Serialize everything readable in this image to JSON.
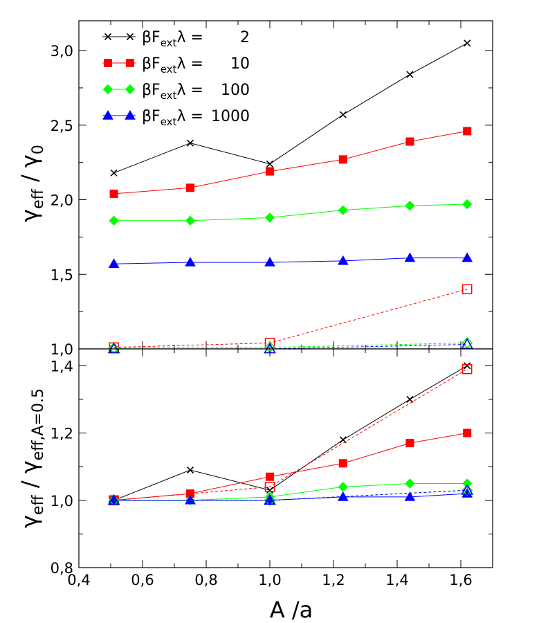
{
  "chart_data": [
    {
      "type": "line",
      "panel": "top",
      "ylabel_parts": {
        "main": "γ",
        "sub1": "eff",
        "sep": " / γ",
        "sub2": "0"
      },
      "xlim": [
        0.4,
        1.7
      ],
      "ylim": [
        1.0,
        3.2
      ],
      "yticks": [
        "1,0",
        "1,5",
        "2,0",
        "2,5",
        "3,0"
      ],
      "ytick_values": [
        1.0,
        1.5,
        2.0,
        2.5,
        3.0
      ],
      "legend": {
        "position": "top-left",
        "entries": [
          {
            "prefix": "βF",
            "sub": "ext",
            "suffix": "λ =",
            "value": "2",
            "color": "#000000",
            "marker": "x"
          },
          {
            "prefix": "βF",
            "sub": "ext",
            "suffix": "λ =",
            "value": "10",
            "color": "#ff0000",
            "marker": "square"
          },
          {
            "prefix": "βF",
            "sub": "ext",
            "suffix": "λ =",
            "value": "100",
            "color": "#00ff00",
            "marker": "diamond"
          },
          {
            "prefix": "βF",
            "sub": "ext",
            "suffix": "λ =",
            "value": "1000",
            "color": "#0000ff",
            "marker": "triangle"
          }
        ]
      },
      "series": [
        {
          "name": "2",
          "color": "#000000",
          "marker": "x",
          "dashed": false,
          "x": [
            0.51,
            0.75,
            1.0,
            1.23,
            1.44,
            1.62
          ],
          "y": [
            2.18,
            2.38,
            2.24,
            2.57,
            2.84,
            3.05
          ]
        },
        {
          "name": "10",
          "color": "#ff0000",
          "marker": "square",
          "dashed": false,
          "x": [
            0.51,
            0.75,
            1.0,
            1.23,
            1.44,
            1.62
          ],
          "y": [
            2.04,
            2.08,
            2.19,
            2.27,
            2.39,
            2.46
          ]
        },
        {
          "name": "100",
          "color": "#00ff00",
          "marker": "diamond",
          "dashed": false,
          "x": [
            0.51,
            0.75,
            1.0,
            1.23,
            1.44,
            1.62
          ],
          "y": [
            1.86,
            1.86,
            1.88,
            1.93,
            1.96,
            1.97
          ]
        },
        {
          "name": "1000",
          "color": "#0000ff",
          "marker": "triangle",
          "dashed": false,
          "x": [
            0.51,
            0.75,
            1.0,
            1.23,
            1.44,
            1.62
          ],
          "y": [
            1.57,
            1.58,
            1.58,
            1.59,
            1.61,
            1.61
          ]
        },
        {
          "name": "10 (open)",
          "color": "#ff0000",
          "marker": "open-square",
          "dashed": true,
          "x": [
            0.51,
            1.0,
            1.62
          ],
          "y": [
            1.01,
            1.04,
            1.4
          ]
        },
        {
          "name": "100 (open)",
          "color": "#00ff00",
          "marker": "open-diamond",
          "dashed": true,
          "x": [
            0.51,
            1.0,
            1.62
          ],
          "y": [
            1.005,
            1.01,
            1.04
          ]
        },
        {
          "name": "1000 (open)",
          "color": "#0000ff",
          "marker": "open-triangle",
          "dashed": true,
          "x": [
            0.51,
            1.0,
            1.62
          ],
          "y": [
            1.0,
            1.0,
            1.03
          ]
        }
      ]
    },
    {
      "type": "line",
      "panel": "bottom",
      "ylabel_parts": {
        "main": "γ",
        "sub1": "eff",
        "sep": " / γ",
        "sub2": "eff,A=0.5"
      },
      "xlabel": "A /a",
      "xlim": [
        0.4,
        1.7
      ],
      "ylim": [
        0.8,
        1.45
      ],
      "xticks": [
        "0,4",
        "0,6",
        "0,8",
        "1,0",
        "1,2",
        "1,4",
        "1,6"
      ],
      "xtick_values": [
        0.4,
        0.6,
        0.8,
        1.0,
        1.2,
        1.4,
        1.6
      ],
      "yticks": [
        "0,8",
        "1,0",
        "1,2",
        "1,4"
      ],
      "ytick_values": [
        0.8,
        1.0,
        1.2,
        1.4
      ],
      "series": [
        {
          "name": "2",
          "color": "#000000",
          "marker": "x",
          "dashed": false,
          "x": [
            0.51,
            0.75,
            1.0,
            1.23,
            1.44,
            1.62
          ],
          "y": [
            1.0,
            1.09,
            1.03,
            1.18,
            1.3,
            1.4
          ]
        },
        {
          "name": "10",
          "color": "#ff0000",
          "marker": "square",
          "dashed": false,
          "x": [
            0.51,
            0.75,
            1.0,
            1.23,
            1.44,
            1.62
          ],
          "y": [
            1.0,
            1.02,
            1.07,
            1.11,
            1.17,
            1.2
          ]
        },
        {
          "name": "100",
          "color": "#00ff00",
          "marker": "diamond",
          "dashed": false,
          "x": [
            0.51,
            0.75,
            1.0,
            1.23,
            1.44,
            1.62
          ],
          "y": [
            1.0,
            1.0,
            1.01,
            1.04,
            1.05,
            1.05
          ]
        },
        {
          "name": "1000",
          "color": "#0000ff",
          "marker": "triangle",
          "dashed": false,
          "x": [
            0.51,
            0.75,
            1.0,
            1.23,
            1.44,
            1.62
          ],
          "y": [
            1.0,
            1.0,
            1.0,
            1.01,
            1.01,
            1.02
          ]
        },
        {
          "name": "10 (open)",
          "color": "#ff0000",
          "marker": "open-square",
          "dashed": true,
          "x": [
            0.51,
            1.0,
            1.62
          ],
          "y": [
            1.0,
            1.04,
            1.39
          ]
        },
        {
          "name": "100 (open)",
          "color": "#00ff00",
          "marker": "open-diamond",
          "dashed": true,
          "x": [
            0.51,
            1.0,
            1.62
          ],
          "y": [
            1.0,
            1.0,
            1.03
          ]
        },
        {
          "name": "1000 (open)",
          "color": "#0000ff",
          "marker": "open-triangle",
          "dashed": true,
          "x": [
            0.51,
            1.0,
            1.62
          ],
          "y": [
            1.0,
            1.0,
            1.03
          ]
        }
      ]
    }
  ]
}
